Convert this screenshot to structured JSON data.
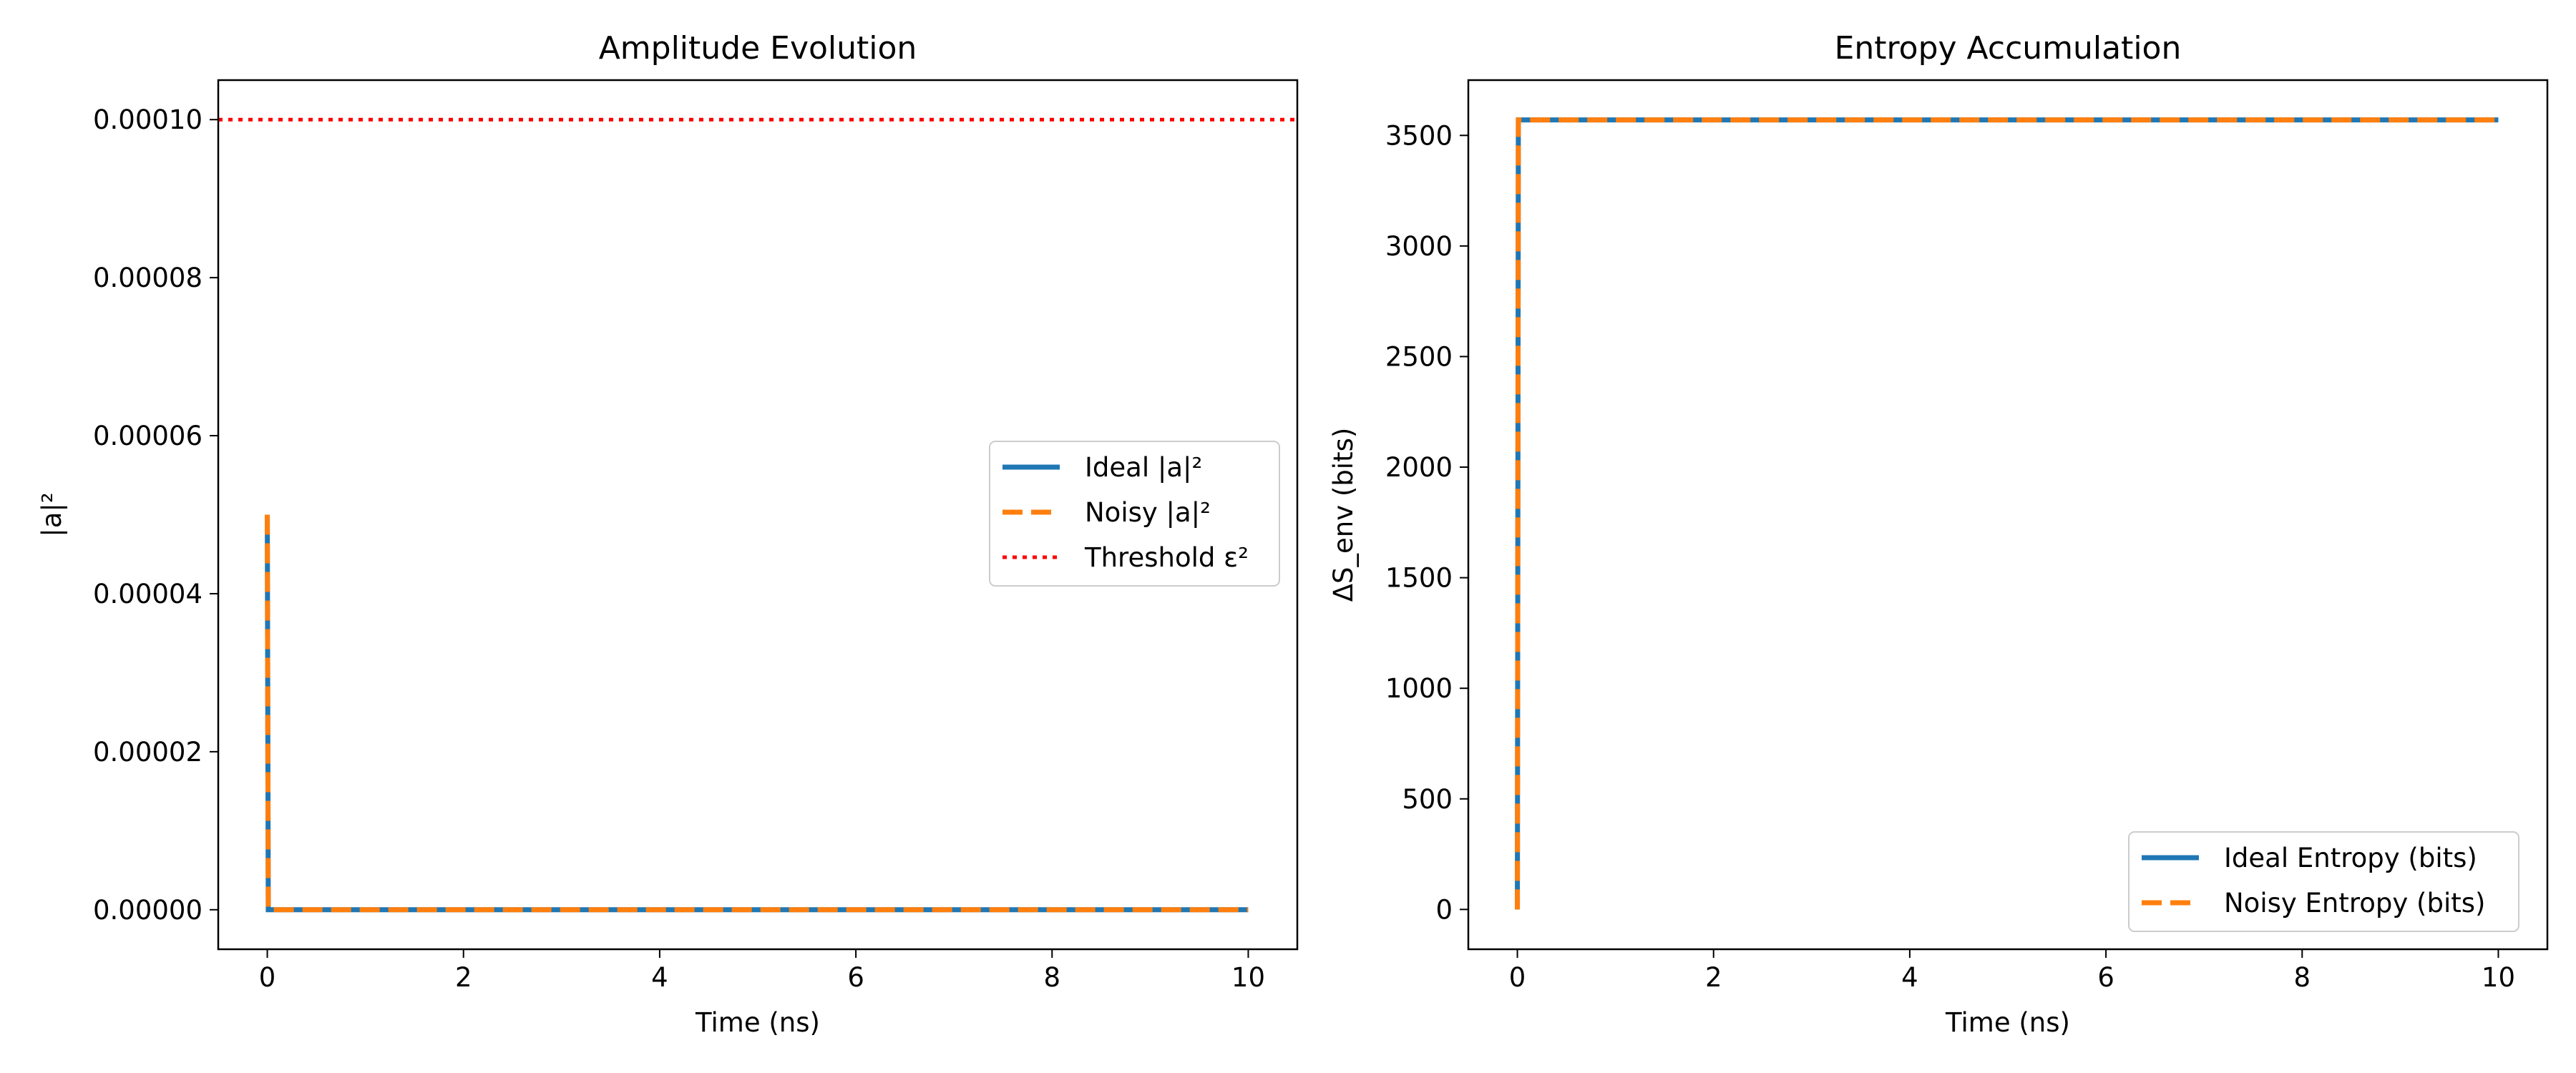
{
  "chart_data": [
    {
      "type": "line",
      "title": "Amplitude Evolution",
      "xlabel": "Time (ns)",
      "ylabel": "|a|²",
      "xlim": [
        -0.5,
        10.5
      ],
      "ylim": [
        -5e-06,
        0.000105
      ],
      "xticks": [
        0,
        2,
        4,
        6,
        8,
        10
      ],
      "xtick_labels": [
        "0",
        "2",
        "4",
        "6",
        "8",
        "10"
      ],
      "yticks": [
        0,
        2e-05,
        4e-05,
        6e-05,
        8e-05,
        0.0001
      ],
      "ytick_labels": [
        "0.00000",
        "0.00002",
        "0.00004",
        "0.00006",
        "0.00008",
        "0.00010"
      ],
      "grid": false,
      "legend_position": "center-right",
      "series": [
        {
          "name": "Ideal |a|²",
          "color": "#1f77b4",
          "style": "solid",
          "x": [
            0,
            0.01,
            10
          ],
          "y": [
            5e-05,
            0,
            0
          ]
        },
        {
          "name": "Noisy |a|²",
          "color": "#ff7f0e",
          "style": "dashed",
          "x": [
            0,
            0.01,
            10
          ],
          "y": [
            5e-05,
            0,
            0
          ]
        },
        {
          "name": "Threshold ε²",
          "color": "#ff0000",
          "style": "dotted",
          "x": [
            -0.5,
            10.5
          ],
          "y": [
            0.0001,
            0.0001
          ]
        }
      ]
    },
    {
      "type": "line",
      "title": "Entropy Accumulation",
      "xlabel": "Time (ns)",
      "ylabel": "ΔS_env (bits)",
      "xlim": [
        -0.5,
        10.5
      ],
      "ylim": [
        -180,
        3750
      ],
      "xticks": [
        0,
        2,
        4,
        6,
        8,
        10
      ],
      "xtick_labels": [
        "0",
        "2",
        "4",
        "6",
        "8",
        "10"
      ],
      "yticks": [
        0,
        500,
        1000,
        1500,
        2000,
        2500,
        3000,
        3500
      ],
      "ytick_labels": [
        "0",
        "500",
        "1000",
        "1500",
        "2000",
        "2500",
        "3000",
        "3500"
      ],
      "grid": false,
      "legend_position": "lower-right",
      "series": [
        {
          "name": "Ideal Entropy (bits)",
          "color": "#1f77b4",
          "style": "solid",
          "x": [
            0,
            0.01,
            10
          ],
          "y": [
            0,
            3570,
            3570
          ]
        },
        {
          "name": "Noisy Entropy (bits)",
          "color": "#ff7f0e",
          "style": "dashed",
          "x": [
            0,
            0.01,
            10
          ],
          "y": [
            0,
            3570,
            3570
          ]
        }
      ]
    }
  ]
}
